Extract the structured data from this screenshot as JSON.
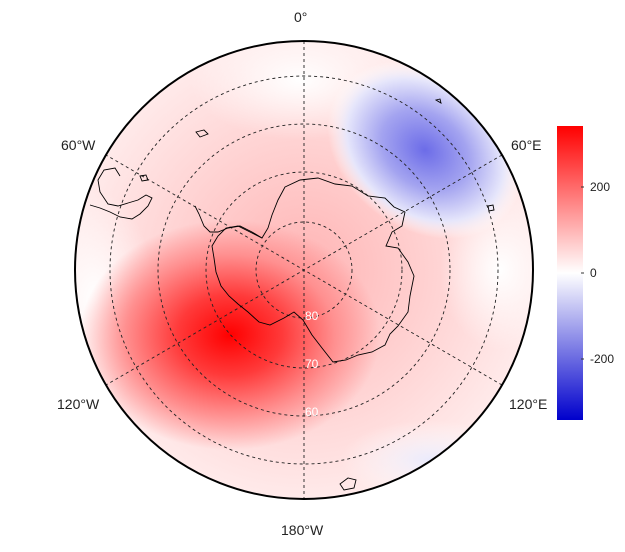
{
  "map": {
    "longitude_labels": [
      "0°",
      "60°E",
      "120°E",
      "180°W",
      "120°W",
      "60°W"
    ],
    "latitude_labels": [
      "80",
      "70",
      "60"
    ],
    "colors": {
      "positive": "#ff0000",
      "zero": "#ffffff",
      "negative": "#0000cc"
    }
  },
  "colorbar": {
    "ticks": [
      "200",
      "0",
      "-200"
    ],
    "range": [
      -340,
      340
    ],
    "gradient": [
      "#0000cc",
      "#ffffff",
      "#ff0000"
    ]
  }
}
